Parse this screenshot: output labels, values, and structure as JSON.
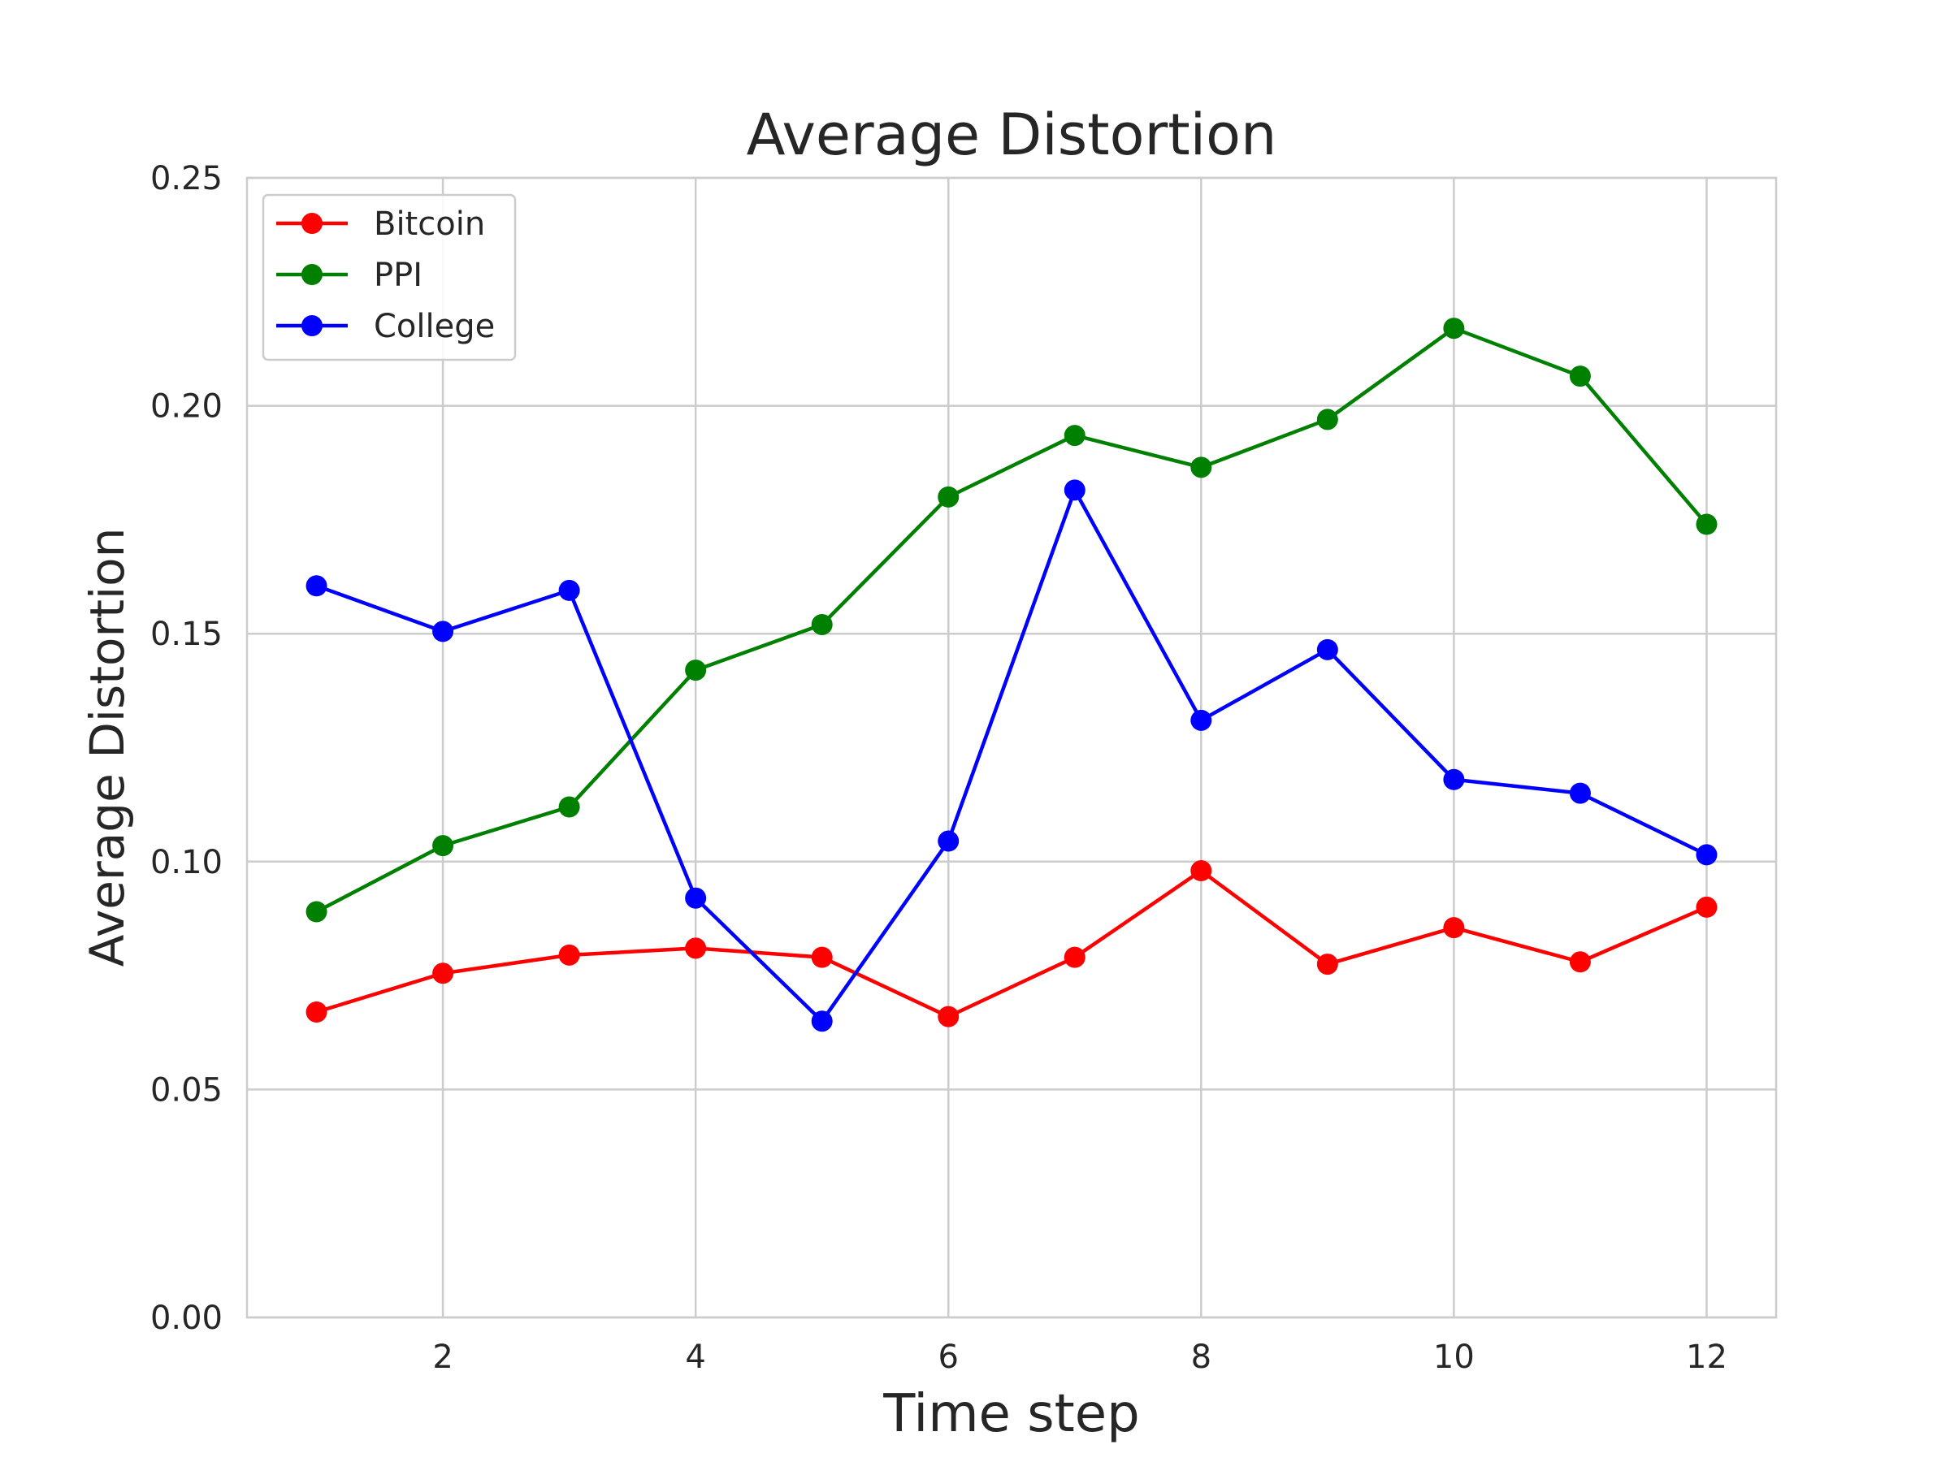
{
  "chart_data": {
    "type": "line",
    "title": "Average Distortion",
    "xlabel": "Time step",
    "ylabel": "Average Distortion",
    "xlim": [
      0.45,
      12.55
    ],
    "ylim": [
      0,
      0.25
    ],
    "xticks": [
      2,
      4,
      6,
      8,
      10,
      12
    ],
    "yticks": [
      0.0,
      0.05,
      0.1,
      0.15,
      0.2,
      0.25
    ],
    "ytick_labels": [
      "0.00",
      "0.05",
      "0.10",
      "0.15",
      "0.20",
      "0.25"
    ],
    "grid": true,
    "legend_position": "top-left",
    "x": [
      1,
      2,
      3,
      4,
      5,
      6,
      7,
      8,
      9,
      10,
      11,
      12
    ],
    "series": [
      {
        "name": "Bitcoin",
        "color": "#ff0000",
        "values": [
          0.067,
          0.0755,
          0.0795,
          0.081,
          0.079,
          0.066,
          0.079,
          0.098,
          0.0775,
          0.0855,
          0.078,
          0.09
        ]
      },
      {
        "name": "PPI",
        "color": "#008000",
        "values": [
          0.089,
          0.1035,
          0.112,
          0.142,
          0.152,
          0.18,
          0.1935,
          0.1865,
          0.197,
          0.217,
          0.2065,
          0.174
        ]
      },
      {
        "name": "College",
        "color": "#0000ff",
        "values": [
          0.1605,
          0.1505,
          0.1595,
          0.092,
          0.065,
          0.1045,
          0.1815,
          0.131,
          0.1465,
          0.118,
          0.115,
          0.1015
        ]
      }
    ]
  }
}
